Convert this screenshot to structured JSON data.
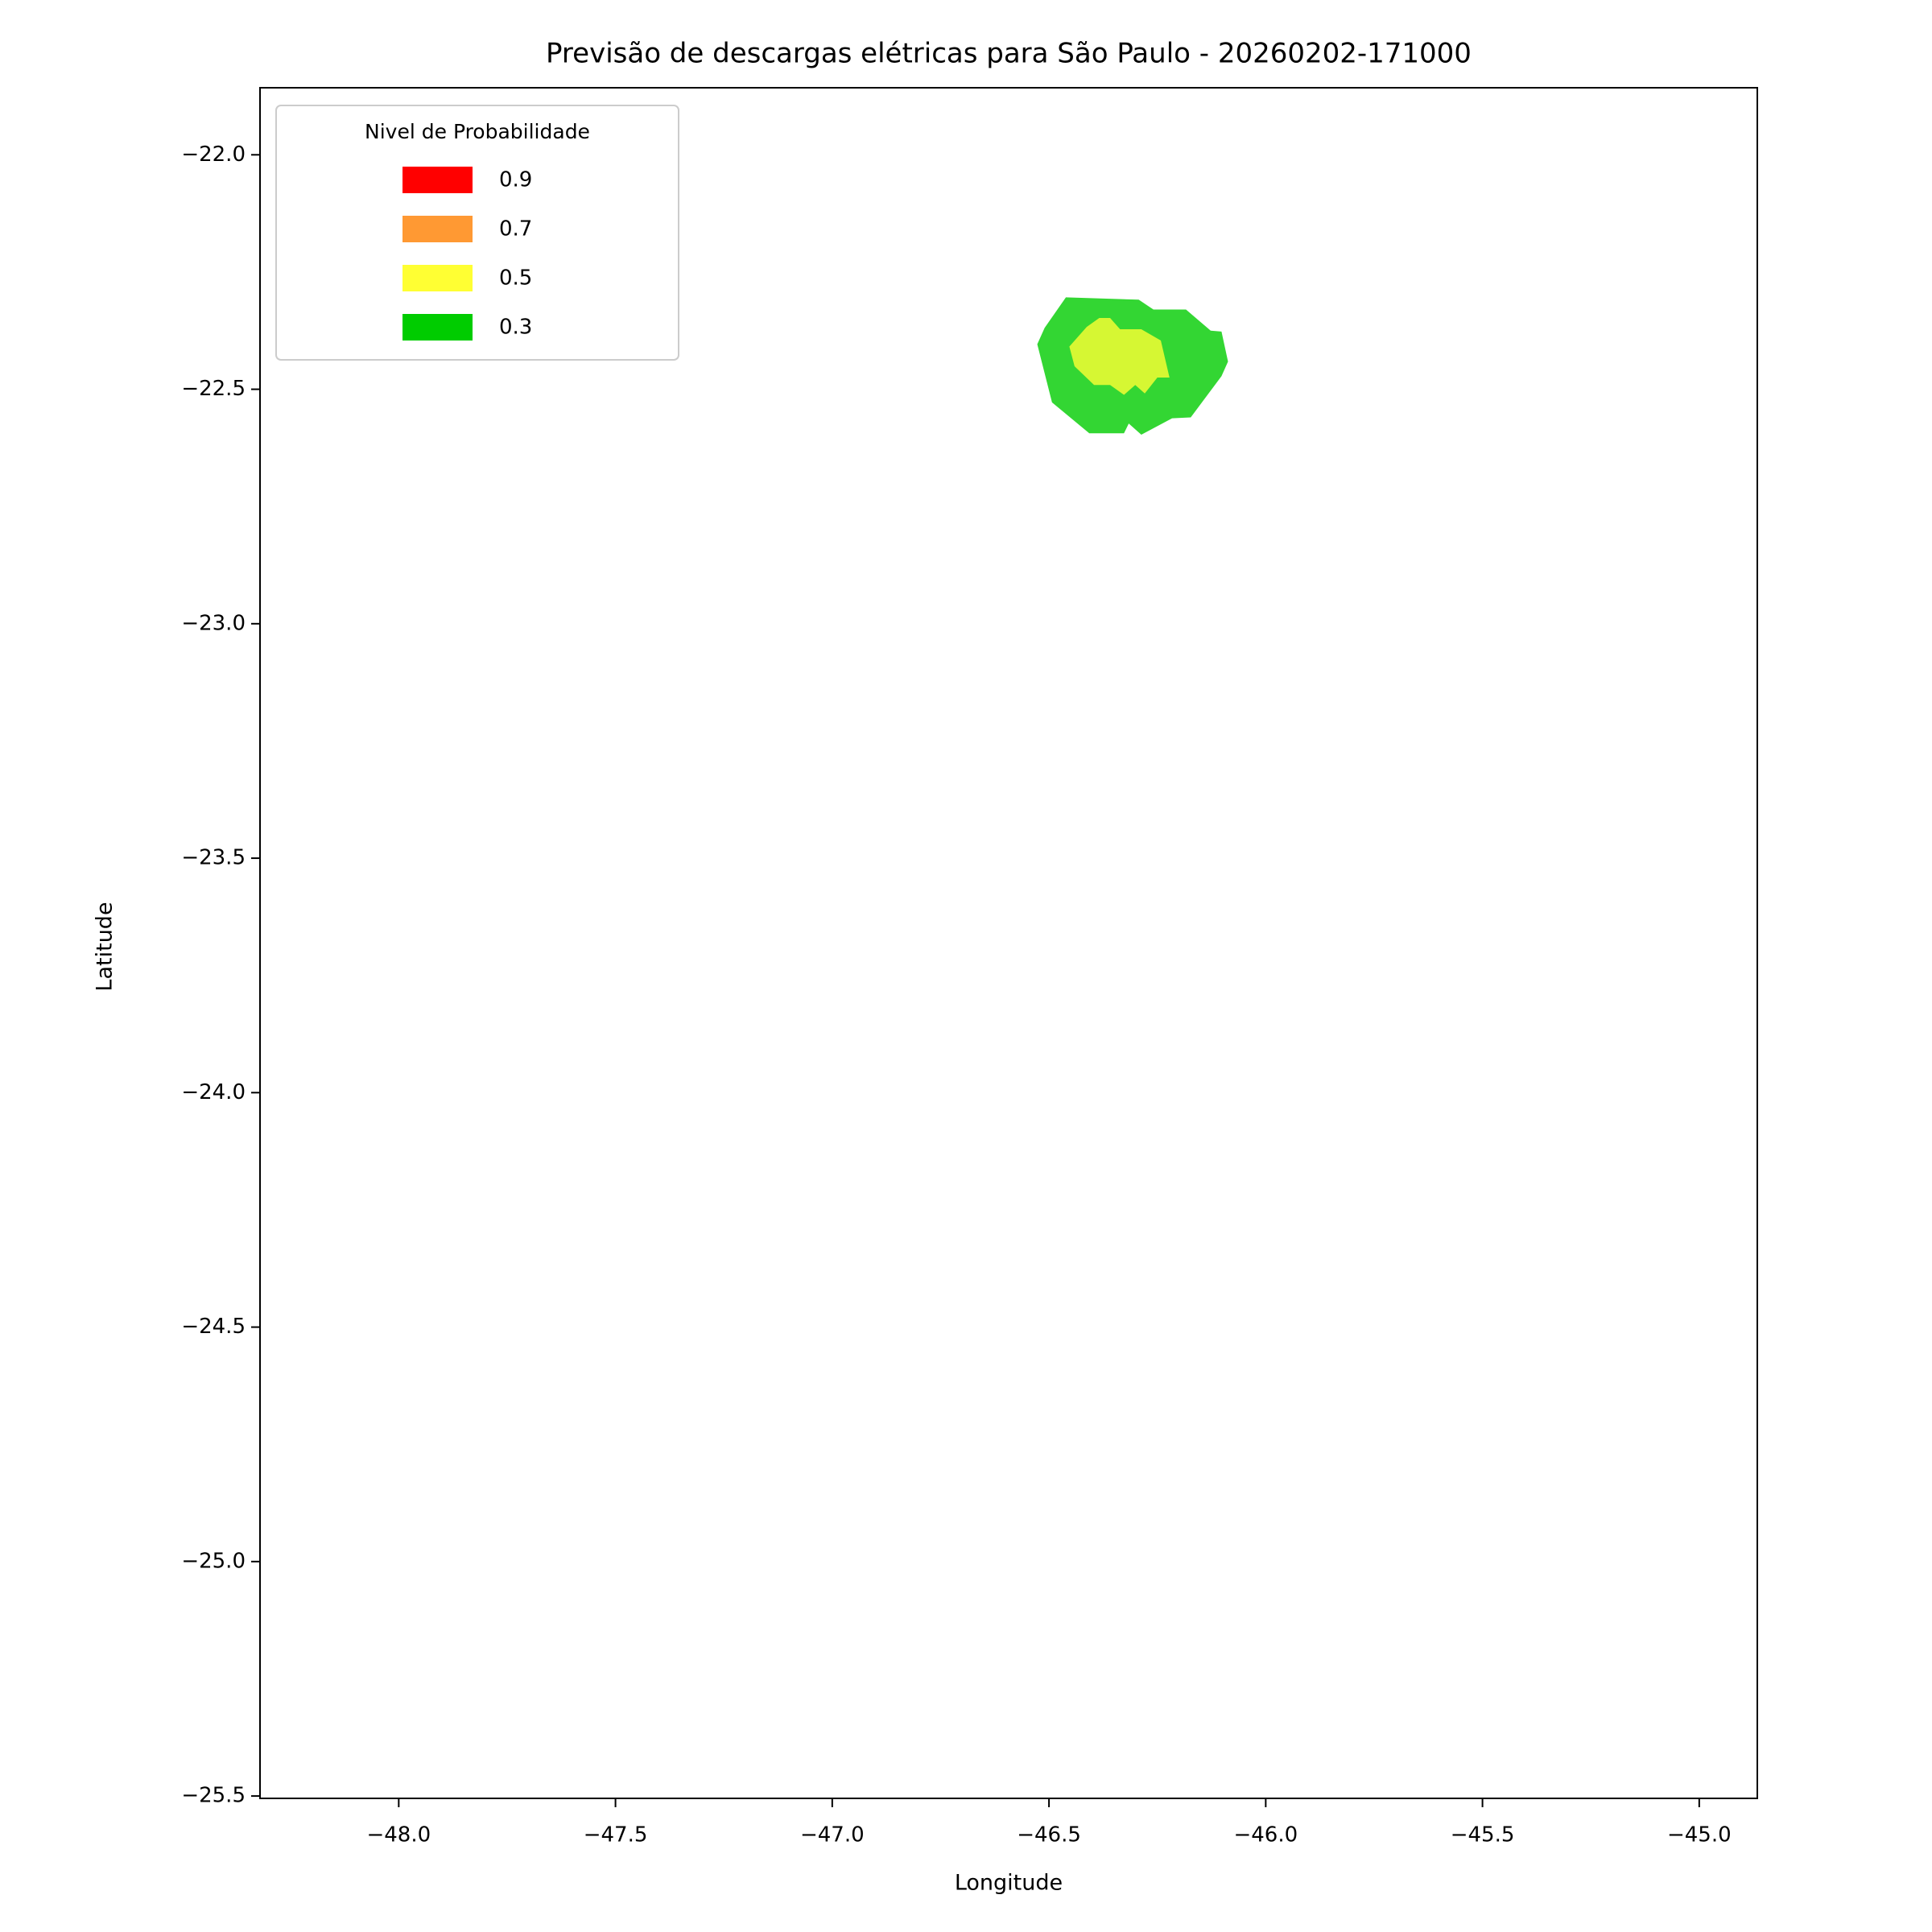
{
  "chart_data": {
    "type": "contour",
    "title": "Previsão de descargas elétricas para São Paulo - 20260202-171000",
    "x_label": "Longitude",
    "y_label": "Latitude",
    "legend_title": "Nivel de Probabilidade",
    "legend_position": "upper-left",
    "fill_opacity": 0.8,
    "xlim": [
      -48.32,
      -44.866
    ],
    "ylim": [
      -25.505,
      -21.857
    ],
    "xticks": [
      {
        "value": -48.0,
        "label": "−48.0"
      },
      {
        "value": -47.5,
        "label": "−47.5"
      },
      {
        "value": -47.0,
        "label": "−47.0"
      },
      {
        "value": -46.5,
        "label": "−46.5"
      },
      {
        "value": -46.0,
        "label": "−46.0"
      },
      {
        "value": -45.5,
        "label": "−45.5"
      },
      {
        "value": -45.0,
        "label": "−45.0"
      }
    ],
    "yticks": [
      {
        "value": -22.0,
        "label": "−22.0"
      },
      {
        "value": -22.5,
        "label": "−22.5"
      },
      {
        "value": -23.0,
        "label": "−23.0"
      },
      {
        "value": -23.5,
        "label": "−23.5"
      },
      {
        "value": -24.0,
        "label": "−24.0"
      },
      {
        "value": -24.5,
        "label": "−24.5"
      },
      {
        "value": -25.0,
        "label": "−25.0"
      },
      {
        "value": -25.5,
        "label": "−25.5"
      }
    ],
    "series": [
      {
        "name": "0.9",
        "color": "#ff0000",
        "polygons": []
      },
      {
        "name": "0.7",
        "color": "#ff9933",
        "polygons": []
      },
      {
        "name": "0.5",
        "color": "#ffff33",
        "polygons": [
          {
            "lon": [
              -46.413,
              -46.384,
              -46.359,
              -46.336,
              -46.287,
              -46.242,
              -46.222,
              -46.25,
              -46.279,
              -46.301,
              -46.327,
              -46.359,
              -46.396,
              -46.441,
              -46.453
            ],
            "lat": [
              -22.367,
              -22.348,
              -22.348,
              -22.372,
              -22.372,
              -22.396,
              -22.475,
              -22.475,
              -22.509,
              -22.491,
              -22.512,
              -22.491,
              -22.491,
              -22.451,
              -22.409
            ]
          }
        ]
      },
      {
        "name": "0.3",
        "color": "#00cc00",
        "polygons": [
          {
            "lon": [
              -46.461,
              -46.293,
              -46.259,
              -46.184,
              -46.127,
              -46.102,
              -46.087,
              -46.102,
              -46.173,
              -46.216,
              -46.287,
              -46.316,
              -46.327,
              -46.407,
              -46.493,
              -46.527,
              -46.51
            ],
            "lat": [
              -22.304,
              -22.309,
              -22.33,
              -22.33,
              -22.375,
              -22.377,
              -22.441,
              -22.472,
              -22.56,
              -22.562,
              -22.597,
              -22.573,
              -22.594,
              -22.594,
              -22.528,
              -22.404,
              -22.369
            ]
          }
        ]
      }
    ]
  }
}
